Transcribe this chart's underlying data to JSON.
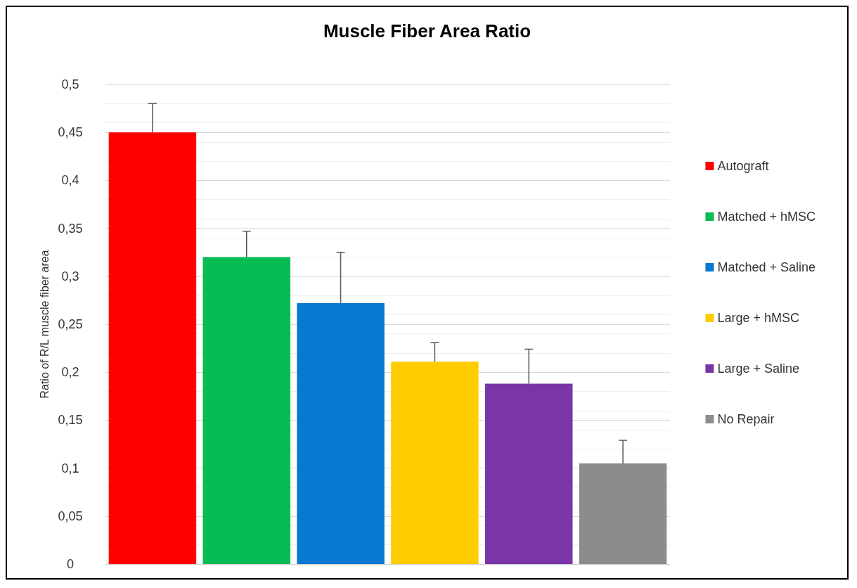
{
  "chart_data": {
    "type": "bar",
    "title": "Muscle Fiber Area Ratio",
    "ylabel": "Ratio of R/L muscle fiber area",
    "categories": [
      null,
      null,
      null,
      null,
      null,
      null
    ],
    "series": [
      {
        "name": "Autograft",
        "color": "#ff0000",
        "values": [
          0.45,
          null,
          null,
          null,
          null,
          null
        ],
        "errors": [
          [
            0.45,
            0.48
          ],
          null,
          null,
          null,
          null,
          null
        ]
      },
      {
        "name": "Matched + hMSC",
        "color": "#07bb55",
        "values": [
          null,
          0.32,
          null,
          null,
          null,
          null
        ],
        "errors": [
          null,
          [
            0.32,
            0.347
          ],
          null,
          null,
          null,
          null
        ]
      },
      {
        "name": "Matched + Saline",
        "color": "#0878d0",
        "values": [
          null,
          null,
          0.272,
          null,
          null,
          null
        ],
        "errors": [
          null,
          null,
          [
            0.272,
            0.325
          ],
          null,
          null,
          null
        ]
      },
      {
        "name": "Large + hMSC",
        "color": "#ffcc00",
        "values": [
          null,
          null,
          null,
          0.211,
          null,
          null
        ],
        "errors": [
          null,
          null,
          null,
          [
            0.211,
            0.231
          ],
          null,
          null
        ]
      },
      {
        "name": "Large + Saline",
        "color": "#7a36a8",
        "values": [
          null,
          null,
          null,
          null,
          0.188,
          null
        ],
        "errors": [
          null,
          null,
          null,
          null,
          [
            0.188,
            0.224
          ],
          null
        ]
      },
      {
        "name": "No Repair",
        "color": "#8c8c8c",
        "values": [
          null,
          null,
          null,
          null,
          null,
          0.105
        ],
        "errors": [
          null,
          null,
          null,
          null,
          null,
          [
            0.105,
            0.129
          ]
        ]
      }
    ],
    "ylim": [
      0,
      0.5
    ],
    "yticks": [
      0,
      {
        "value": 0.05,
        "label": "0,05"
      },
      {
        "value": 0.1,
        "label": "0,1"
      },
      {
        "value": 0.15,
        "label": "0,15"
      },
      {
        "value": 0.2,
        "label": "0,2"
      },
      {
        "value": 0.25,
        "label": "0,25"
      },
      {
        "value": 0.3,
        "label": "0,3"
      },
      {
        "value": 0.35,
        "label": "0,35"
      },
      {
        "value": 0.4,
        "label": "0,4"
      },
      {
        "value": 0.45,
        "label": "0,45"
      },
      {
        "value": 0.5,
        "label": "0,5"
      }
    ],
    "grid": "y",
    "legend": "right"
  }
}
